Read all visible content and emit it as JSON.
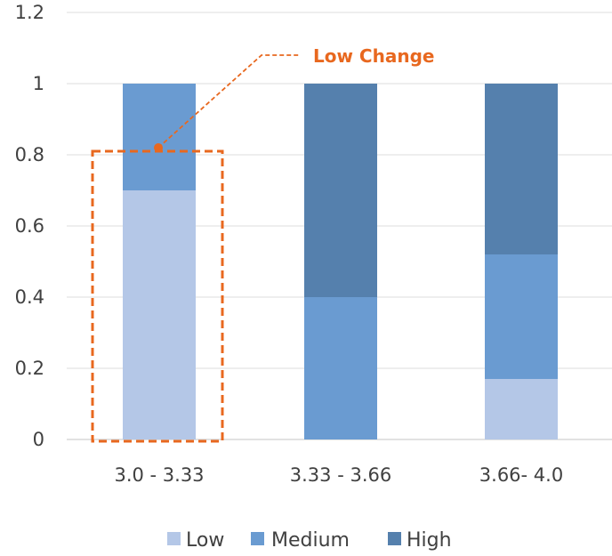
{
  "chart_data": {
    "type": "bar",
    "stacked": true,
    "categories": [
      "3.0 - 3.33",
      "3.33 - 3.66",
      "3.66- 4.0"
    ],
    "series": [
      {
        "name": "Low",
        "values": [
          0.7,
          0.0,
          0.17
        ],
        "color": "#b4c7e7"
      },
      {
        "name": "Medium",
        "values": [
          0.3,
          0.4,
          0.35
        ],
        "color": "#6a9bd1"
      },
      {
        "name": "High",
        "values": [
          0.0,
          0.6,
          0.48
        ],
        "color": "#5580ad"
      }
    ],
    "ylim": [
      0,
      1.2
    ],
    "yticks": [
      "0",
      "0.2",
      "0.4",
      "0.6",
      "0.8",
      "1",
      "1.2"
    ],
    "ytick_values": [
      0,
      0.2,
      0.4,
      0.6,
      0.8,
      1.0,
      1.2
    ],
    "grid": true,
    "legend": "bottom",
    "annotation": {
      "text": "Low Change",
      "color": "#e8681f",
      "category_index": 0
    }
  }
}
